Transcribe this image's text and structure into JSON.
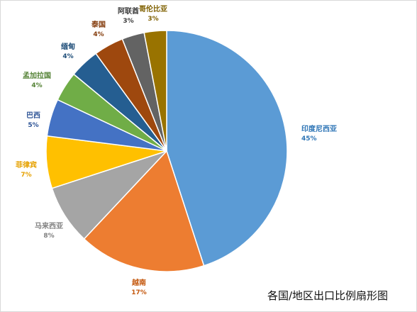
{
  "chart_data": {
    "type": "pie",
    "title": "各国/地区出口比例扇形图",
    "slices": [
      {
        "label": "印度尼西亚",
        "value": 45,
        "pct_text": "45%",
        "color": "#5b9bd5",
        "label_color": "#2e75b6"
      },
      {
        "label": "越南",
        "value": 17,
        "pct_text": "17%",
        "color": "#ed7d31",
        "label_color": "#c55a11"
      },
      {
        "label": "马来西亚",
        "value": 8,
        "pct_text": "8%",
        "color": "#a5a5a5",
        "label_color": "#7f7f7f"
      },
      {
        "label": "菲律宾",
        "value": 7,
        "pct_text": "7%",
        "color": "#ffc000",
        "label_color": "#e6a100"
      },
      {
        "label": "巴西",
        "value": 5,
        "pct_text": "5%",
        "color": "#4472c4",
        "label_color": "#2f5597"
      },
      {
        "label": "孟加拉国",
        "value": 4,
        "pct_text": "4%",
        "color": "#70ad47",
        "label_color": "#548235"
      },
      {
        "label": "缅甸",
        "value": 4,
        "pct_text": "4%",
        "color": "#255e91",
        "label_color": "#1f4e79"
      },
      {
        "label": "泰国",
        "value": 4,
        "pct_text": "4%",
        "color": "#9e480e",
        "label_color": "#843c0c"
      },
      {
        "label": "阿联酋",
        "value": 3,
        "pct_text": "3%",
        "color": "#636363",
        "label_color": "#404040"
      },
      {
        "label": "哥伦比亚",
        "value": 3,
        "pct_text": "3%",
        "color": "#997300",
        "label_color": "#7f6000"
      }
    ]
  }
}
